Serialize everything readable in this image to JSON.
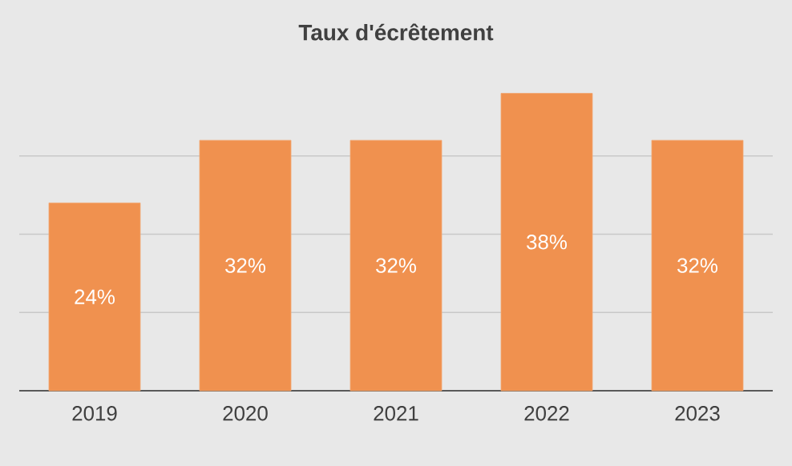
{
  "chart_data": {
    "type": "bar",
    "title": "Taux d'écrêtement",
    "categories": [
      "2019",
      "2020",
      "2021",
      "2022",
      "2023"
    ],
    "values": [
      24,
      32,
      32,
      38,
      32
    ],
    "value_labels": [
      "24%",
      "32%",
      "32%",
      "38%",
      "32%"
    ],
    "color": "#f0914f",
    "tick_labels": "x",
    "grid": "y"
  }
}
